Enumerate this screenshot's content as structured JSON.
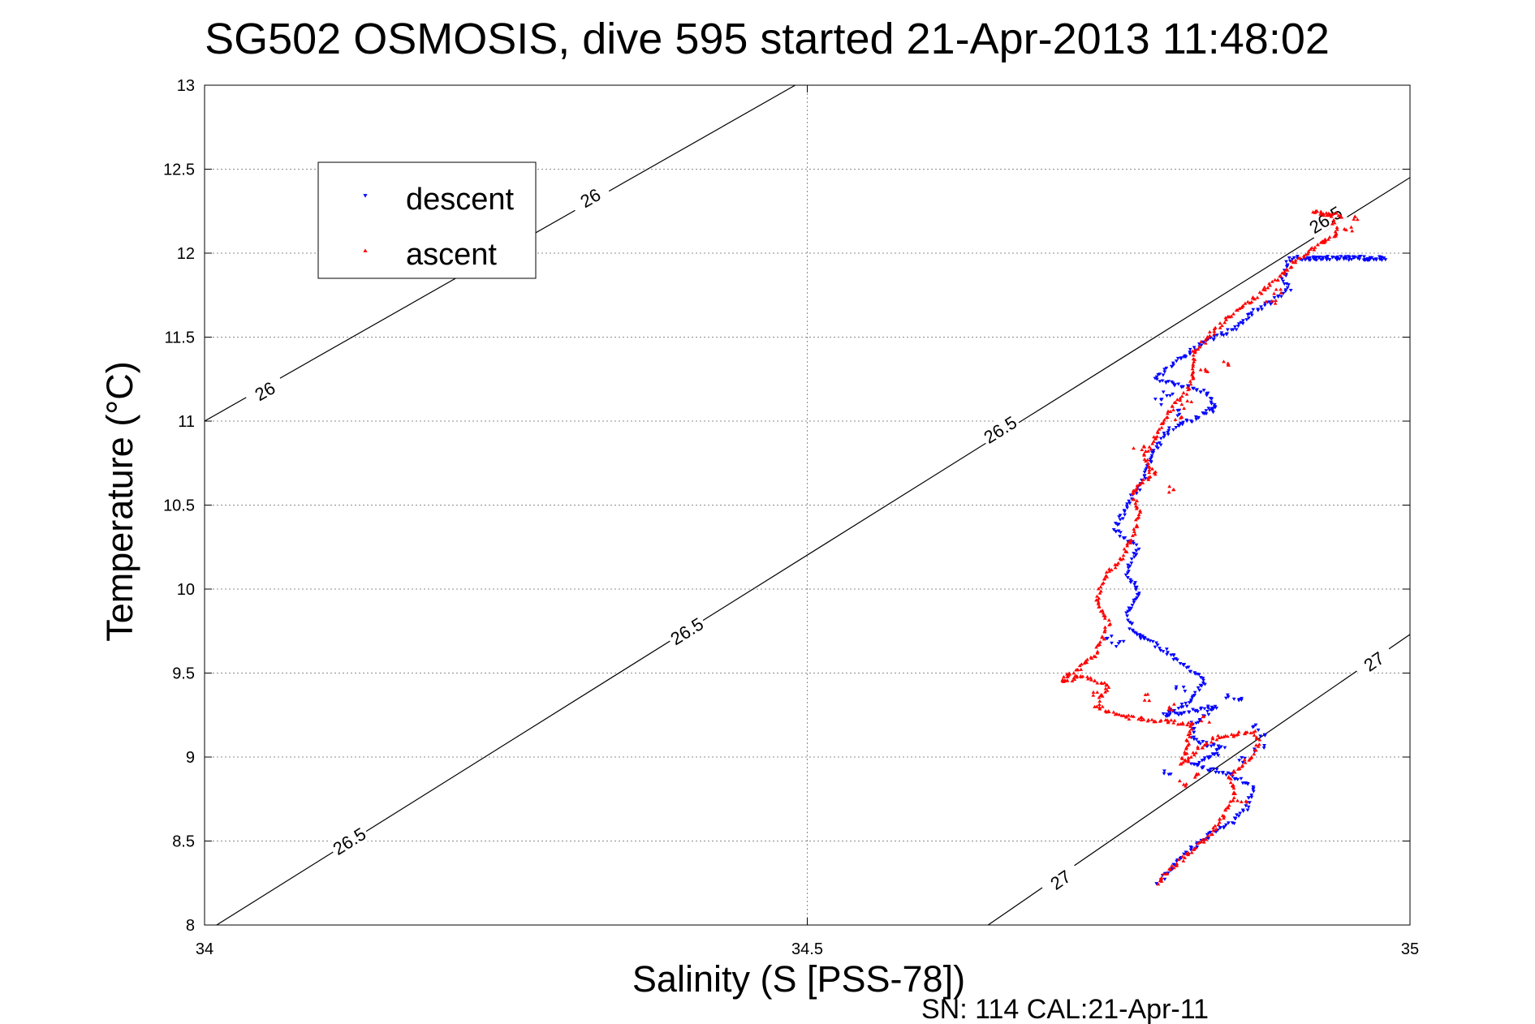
{
  "chart_data": {
    "type": "scatter",
    "title": "SG502 OSMOSIS, dive 595 started 21-Apr-2013 11:48:02",
    "xlabel": "Salinity (S [PSS-78])",
    "ylabel": "Temperature (°C)",
    "xlim": [
      34,
      35
    ],
    "ylim": [
      8,
      13
    ],
    "xticks": [
      34,
      34.5,
      35
    ],
    "xtick_labels": [
      "34",
      "34.5",
      "35"
    ],
    "yticks": [
      8,
      8.5,
      9,
      9.5,
      10,
      10.5,
      11,
      11.5,
      12,
      12.5,
      13
    ],
    "ytick_labels": [
      "8",
      "8.5",
      "9",
      "9.5",
      "10",
      "10.5",
      "11",
      "11.5",
      "12",
      "12.5",
      "13"
    ],
    "grid": true,
    "legend_position": "top-left",
    "footer": "SN: 114  CAL:21-Apr-11",
    "colors": {
      "descent": "#0000ff",
      "ascent": "#ff0000",
      "contour": "#000000"
    },
    "contours": [
      {
        "label": "26",
        "points": [
          [
            34.0,
            11.0
          ],
          [
            34.49,
            13.0
          ]
        ],
        "label_positions": [
          [
            34.05,
            11.18
          ],
          [
            34.32,
            12.33
          ]
        ]
      },
      {
        "label": "26.5",
        "points": [
          [
            34.01,
            8.0
          ],
          [
            35.0,
            12.45
          ]
        ],
        "label_positions": [
          [
            34.12,
            8.5
          ],
          [
            34.4,
            9.75
          ],
          [
            34.66,
            10.95
          ],
          [
            34.93,
            12.2
          ]
        ]
      },
      {
        "label": "27",
        "points": [
          [
            34.65,
            8.0
          ],
          [
            35.0,
            9.73
          ]
        ],
        "label_positions": [
          [
            34.71,
            8.27
          ],
          [
            34.97,
            9.57
          ]
        ]
      }
    ],
    "series": [
      {
        "name": "descent",
        "marker": "triangle-down",
        "path": [
          [
            34.915,
            11.97
          ],
          [
            34.98,
            11.97
          ],
          [
            34.935,
            11.97
          ],
          [
            34.9,
            11.97
          ],
          [
            34.895,
            11.85
          ],
          [
            34.9,
            11.78
          ],
          [
            34.87,
            11.65
          ],
          [
            34.855,
            11.55
          ],
          [
            34.83,
            11.47
          ],
          [
            34.81,
            11.38
          ],
          [
            34.79,
            11.25
          ],
          [
            34.83,
            11.17
          ],
          [
            34.84,
            11.08
          ],
          [
            34.8,
            10.95
          ],
          [
            34.785,
            10.8
          ],
          [
            34.78,
            10.65
          ],
          [
            34.765,
            10.5
          ],
          [
            34.755,
            10.35
          ],
          [
            34.775,
            10.25
          ],
          [
            34.765,
            10.1
          ],
          [
            34.775,
            9.98
          ],
          [
            34.765,
            9.85
          ],
          [
            34.77,
            9.75
          ],
          [
            34.8,
            9.62
          ],
          [
            34.83,
            9.45
          ],
          [
            34.815,
            9.32
          ],
          [
            34.795,
            9.25
          ],
          [
            34.84,
            9.3
          ],
          [
            34.82,
            9.2
          ],
          [
            34.82,
            9.1
          ],
          [
            34.845,
            9.05
          ],
          [
            34.82,
            8.95
          ],
          [
            34.85,
            8.9
          ],
          [
            34.87,
            8.82
          ],
          [
            34.865,
            8.7
          ],
          [
            34.85,
            8.6
          ],
          [
            34.83,
            8.52
          ],
          [
            34.81,
            8.4
          ],
          [
            34.8,
            8.32
          ],
          [
            34.79,
            8.25
          ]
        ],
        "scatter": [
          [
            34.79,
            11.12
          ],
          [
            34.8,
            11.15
          ],
          [
            34.81,
            11.05
          ],
          [
            34.835,
            11.06
          ],
          [
            34.75,
            9.7
          ],
          [
            34.76,
            9.68
          ],
          [
            34.78,
            9.72
          ],
          [
            34.81,
            9.4
          ],
          [
            34.85,
            9.35
          ],
          [
            34.86,
            9.33
          ],
          [
            34.87,
            9.18
          ],
          [
            34.88,
            9.12
          ],
          [
            34.875,
            9.05
          ],
          [
            34.86,
            8.98
          ],
          [
            34.84,
            9.0
          ],
          [
            34.8,
            8.92
          ]
        ]
      },
      {
        "name": "ascent",
        "marker": "triangle-up",
        "path": [
          [
            34.79,
            8.25
          ],
          [
            34.8,
            8.32
          ],
          [
            34.82,
            8.45
          ],
          [
            34.835,
            8.55
          ],
          [
            34.845,
            8.65
          ],
          [
            34.855,
            8.78
          ],
          [
            34.85,
            8.88
          ],
          [
            34.865,
            8.98
          ],
          [
            34.875,
            9.08
          ],
          [
            34.87,
            9.15
          ],
          [
            34.84,
            9.12
          ],
          [
            34.825,
            9.05
          ],
          [
            34.81,
            8.95
          ],
          [
            34.82,
            9.2
          ],
          [
            34.78,
            9.22
          ],
          [
            34.76,
            9.25
          ],
          [
            34.74,
            9.3
          ],
          [
            34.75,
            9.42
          ],
          [
            34.73,
            9.48
          ],
          [
            34.71,
            9.45
          ],
          [
            34.73,
            9.55
          ],
          [
            34.74,
            9.62
          ],
          [
            34.75,
            9.8
          ],
          [
            34.74,
            9.92
          ],
          [
            34.745,
            10.05
          ],
          [
            34.76,
            10.18
          ],
          [
            34.77,
            10.3
          ],
          [
            34.775,
            10.45
          ],
          [
            34.77,
            10.58
          ],
          [
            34.785,
            10.68
          ],
          [
            34.78,
            10.8
          ],
          [
            34.79,
            10.92
          ],
          [
            34.8,
            11.05
          ],
          [
            34.815,
            11.18
          ],
          [
            34.82,
            11.28
          ],
          [
            34.82,
            11.4
          ],
          [
            34.835,
            11.52
          ],
          [
            34.85,
            11.62
          ],
          [
            34.87,
            11.72
          ],
          [
            34.89,
            11.85
          ],
          [
            34.905,
            11.95
          ],
          [
            34.925,
            12.05
          ],
          [
            34.94,
            12.12
          ],
          [
            34.935,
            12.22
          ],
          [
            34.92,
            12.25
          ],
          [
            34.945,
            12.22
          ]
        ],
        "scatter": [
          [
            34.72,
            9.5
          ],
          [
            34.74,
            9.38
          ],
          [
            34.78,
            9.35
          ],
          [
            34.8,
            9.3
          ],
          [
            34.83,
            9.22
          ],
          [
            34.82,
            8.9
          ],
          [
            34.81,
            8.85
          ],
          [
            34.86,
            8.75
          ],
          [
            34.8,
            10.6
          ],
          [
            34.79,
            10.7
          ],
          [
            34.775,
            10.85
          ],
          [
            34.83,
            11.3
          ],
          [
            34.845,
            11.33
          ],
          [
            34.81,
            11.0
          ],
          [
            34.815,
            11.1
          ],
          [
            34.89,
            11.78
          ],
          [
            34.885,
            11.72
          ],
          [
            34.95,
            12.15
          ],
          [
            34.955,
            12.2
          ],
          [
            34.93,
            12.08
          ]
        ]
      }
    ]
  }
}
